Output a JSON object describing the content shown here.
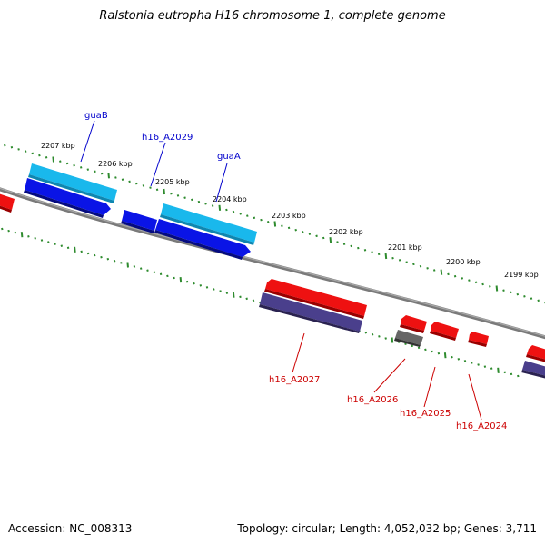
{
  "title": "Ralstonia eutropha H16 chromosome 1, complete genome",
  "footer": {
    "accession": "Accession: NC_008313",
    "topology": "Topology: circular; Length: 4,052,032 bp; Genes: 3,711"
  },
  "colors": {
    "backbone": "#808080",
    "tick": "#2e8b2e",
    "forward_label": "#0000cc",
    "reverse_label": "#cc0000",
    "light_blue_gene": "#19b8ec",
    "blue_gene": "#0a14e6",
    "red_gene": "#ee1111",
    "slate_gene": "#4a3f8c",
    "gray_gene": "#666666"
  },
  "scale_labels": [
    "2207 kbp",
    "2206 kbp",
    "2205 kbp",
    "2204 kbp",
    "2203 kbp",
    "2202 kbp",
    "2201 kbp",
    "2200 kbp",
    "2199 kbp"
  ],
  "forward_genes": [
    "guaB",
    "h16_A2029",
    "guaA"
  ],
  "reverse_genes": [
    "h16_A2027",
    "h16_A2026",
    "h16_A2025",
    "h16_A2024"
  ]
}
